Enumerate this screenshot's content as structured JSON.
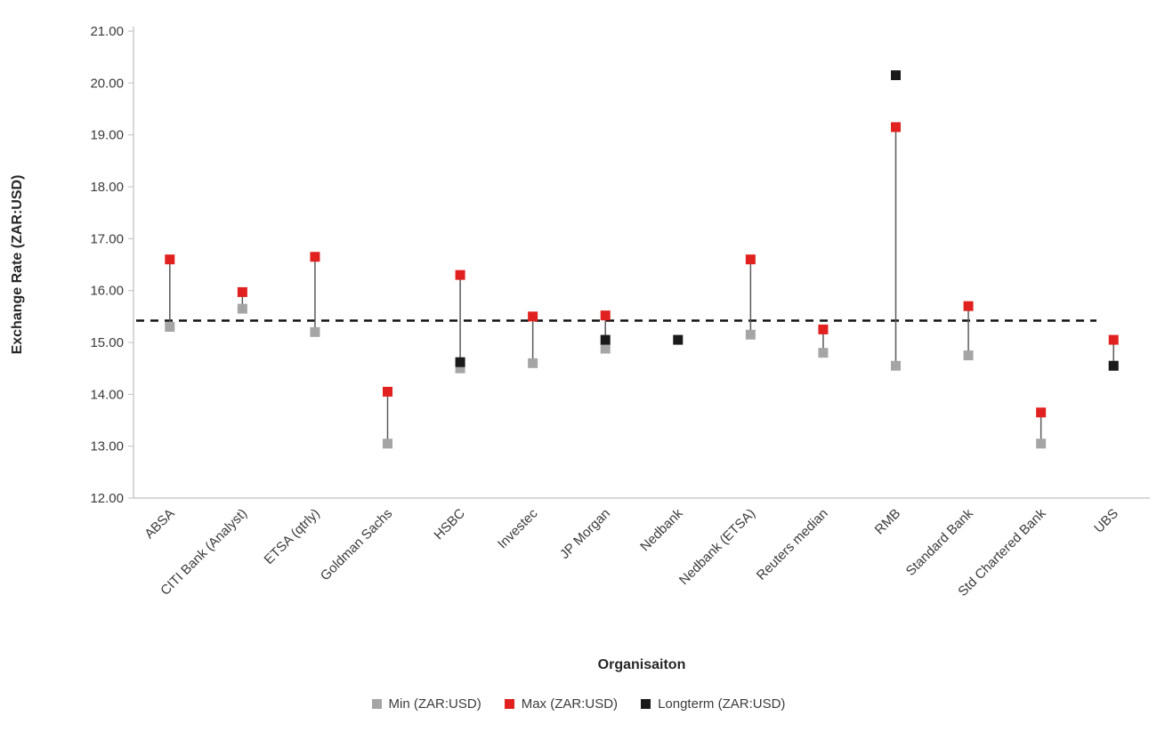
{
  "chart_data": {
    "type": "scatter",
    "title": "",
    "xlabel": "Organisaiton",
    "ylabel": "Exchange Rate (ZAR:USD)",
    "ylim": [
      12,
      21
    ],
    "ytick_step": 1,
    "ytick_decimals": 2,
    "grid": false,
    "legend_position": "bottom",
    "hi_lo_lines": true,
    "reference_line": {
      "value": 15.42,
      "style": "dashed",
      "color": "#111111"
    },
    "categories": [
      "ABSA",
      "CITI Bank (Analyst)",
      "ETSA (qtrly)",
      "Goldman Sachs",
      "HSBC",
      "Investec",
      "JP Morgan",
      "Nedbank",
      "Nedbank (ETSA)",
      "Reuters median",
      "RMB",
      "Standard Bank",
      "Std Chartered Bank",
      "UBS"
    ],
    "series": [
      {
        "name": "Min (ZAR:USD)",
        "marker": "min-marker",
        "color": "#a5a5a5",
        "values": [
          15.3,
          15.65,
          15.2,
          13.05,
          14.5,
          14.6,
          14.88,
          null,
          15.15,
          14.8,
          14.55,
          14.75,
          13.05,
          14.55
        ]
      },
      {
        "name": "Max (ZAR:USD)",
        "marker": "max-marker",
        "color": "#e0211f",
        "values": [
          16.6,
          15.97,
          16.65,
          14.05,
          16.3,
          15.5,
          15.52,
          null,
          16.6,
          15.25,
          19.15,
          15.7,
          13.65,
          15.05
        ]
      },
      {
        "name": "Longterm (ZAR:USD)",
        "marker": "longterm-marker",
        "color": "#1a1a1a",
        "values": [
          null,
          null,
          null,
          null,
          14.62,
          null,
          15.05,
          15.05,
          null,
          null,
          20.15,
          null,
          null,
          14.55
        ]
      }
    ]
  }
}
